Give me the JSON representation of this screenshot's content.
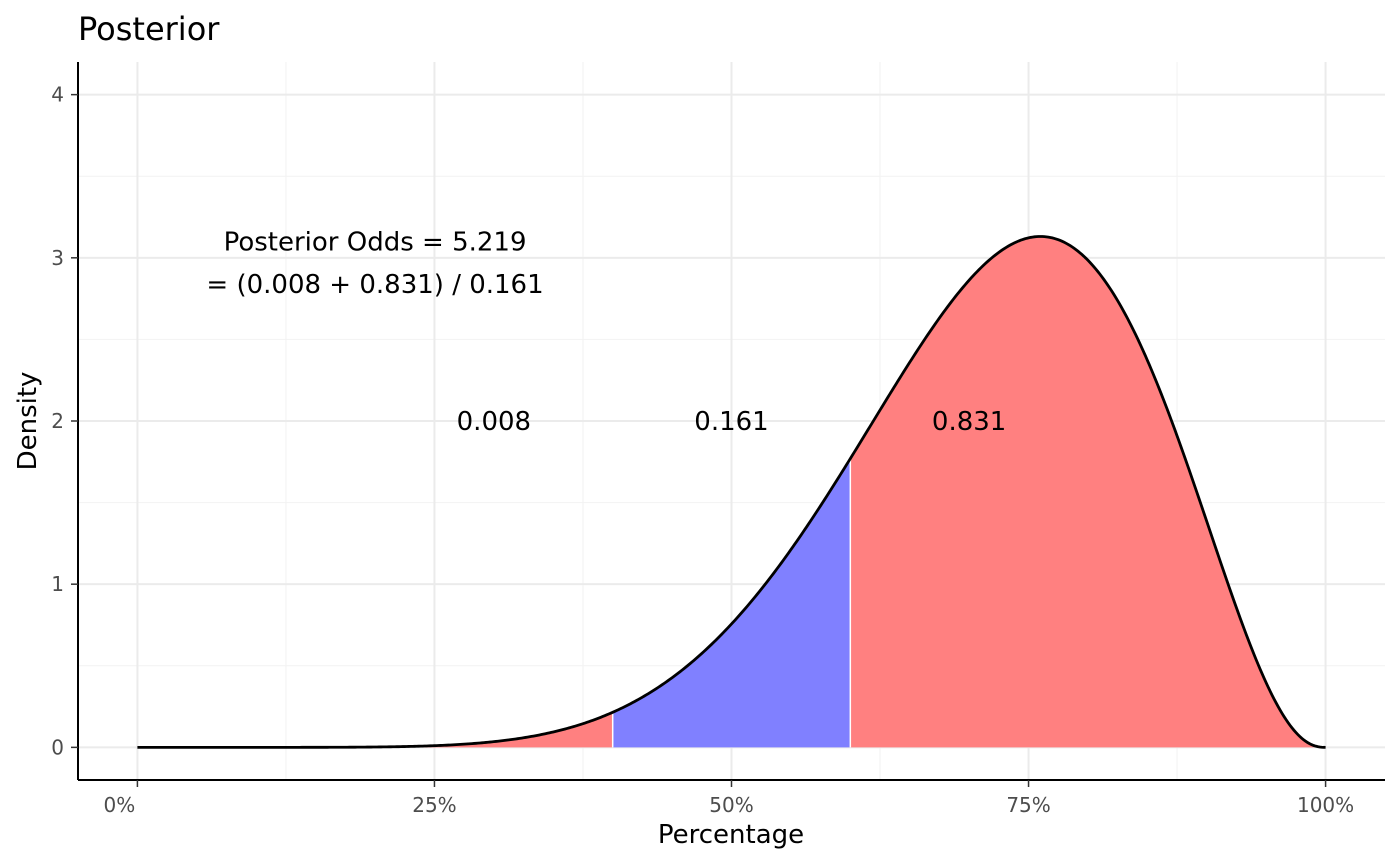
{
  "chart_data": {
    "type": "area",
    "title": "Posterior",
    "xlabel": "Percentage",
    "ylabel": "Density",
    "xlim": [
      -0.05,
      1.05
    ],
    "ylim": [
      -0.2,
      4.2
    ],
    "x_ticks": [
      0,
      0.25,
      0.5,
      0.75,
      1.0
    ],
    "x_tick_labels": [
      "0%",
      "25%",
      "50%",
      "75%",
      "100%"
    ],
    "y_ticks": [
      0,
      1,
      2,
      3,
      4
    ],
    "y_tick_labels": [
      "0",
      "1",
      "2",
      "3",
      "4"
    ],
    "grid": true,
    "density": {
      "distribution": "beta",
      "alpha": 8.6,
      "beta": 3.4
    },
    "regions": [
      {
        "name": "0.008",
        "from": 0.0,
        "to": 0.4,
        "color": "#ff8080",
        "label_x": 0.3,
        "label_y": 2.0
      },
      {
        "name": "0.161",
        "from": 0.4,
        "to": 0.6,
        "color": "#8080ff",
        "label_x": 0.5,
        "label_y": 2.0
      },
      {
        "name": "0.831",
        "from": 0.6,
        "to": 1.0,
        "color": "#ff8080",
        "label_x": 0.7,
        "label_y": 2.0
      }
    ],
    "annotation": {
      "line1": "Posterior Odds = 5.219",
      "line2": "= (0.008 + 0.831) / 0.161",
      "x": 0.2,
      "y1": 3.1,
      "y2": 2.84
    },
    "curve_color": "#000000"
  }
}
